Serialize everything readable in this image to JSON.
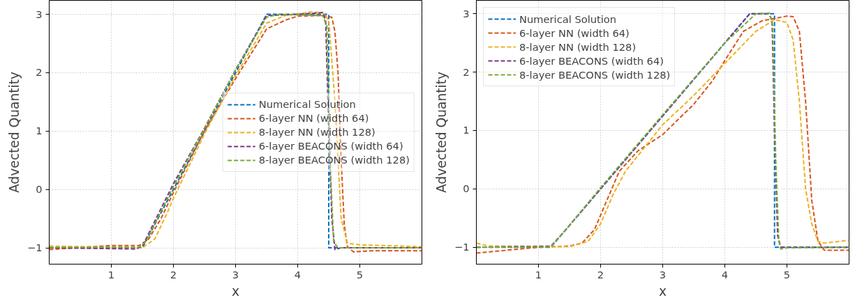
{
  "chart_data": [
    {
      "type": "line",
      "xlabel": "x",
      "ylabel": "Advected Quantity",
      "xlim": [
        0,
        6
      ],
      "ylim": [
        -1.28,
        3.24
      ],
      "xticks": [
        1,
        2,
        3,
        4,
        5
      ],
      "yticks": [
        {
          "value": -1,
          "label": "−1"
        },
        0,
        1,
        2,
        3
      ],
      "grid": true,
      "legend": "right",
      "line_style": "dashed",
      "marker": "none",
      "series": [
        {
          "name": "Numerical Solution",
          "color": "#0072bd",
          "x": [
            0,
            1.5,
            3.5,
            4.5,
            4.5,
            6
          ],
          "values": [
            -1,
            -1,
            3,
            3,
            -1,
            -1
          ]
        },
        {
          "name": "6-layer NN (width 64)",
          "color": "#d95319",
          "x": [
            0,
            1,
            1.45,
            1.6,
            1.8,
            2.0,
            2.5,
            3.0,
            3.5,
            3.8,
            4.0,
            4.4,
            4.55,
            4.6,
            4.65,
            4.7,
            4.75,
            4.8,
            4.9,
            5.2,
            6
          ],
          "values": [
            -1.03,
            -0.96,
            -0.96,
            -0.85,
            -0.5,
            -0.05,
            1.0,
            1.9,
            2.75,
            2.9,
            2.97,
            2.98,
            2.95,
            2.7,
            2.0,
            0.5,
            -0.6,
            -0.98,
            -1.07,
            -1.05,
            -1.05
          ]
        },
        {
          "name": "8-layer NN (width 128)",
          "color": "#edb120",
          "x": [
            0,
            1.5,
            1.7,
            1.9,
            2.0,
            2.5,
            3.0,
            3.5,
            3.8,
            4.2,
            4.4,
            4.5,
            4.6,
            4.65,
            4.7,
            4.8,
            5.0,
            6
          ],
          "values": [
            -0.97,
            -1.0,
            -0.85,
            -0.4,
            -0.15,
            0.95,
            1.95,
            2.85,
            2.98,
            3.04,
            3.03,
            2.9,
            1.5,
            0.5,
            -0.5,
            -0.92,
            -0.95,
            -0.98
          ]
        },
        {
          "name": "6-layer BEACONS (width 64)",
          "color": "#7e2f8e",
          "x": [
            0,
            1.4,
            1.5,
            2,
            2.5,
            3,
            3.5,
            4,
            4.4,
            4.45,
            4.5,
            4.55,
            4.6,
            4.7,
            6
          ],
          "values": [
            -1.0,
            -1.02,
            -0.97,
            0.1,
            1.05,
            2.05,
            2.98,
            3.0,
            3.03,
            2.9,
            1.0,
            -0.5,
            -1.03,
            -1.0,
            -1.0
          ]
        },
        {
          "name": "8-layer BEACONS (width 128)",
          "color": "#77ac30",
          "x": [
            0,
            1.45,
            1.55,
            2,
            2.5,
            3,
            3.5,
            3.7,
            4.4,
            4.47,
            4.52,
            4.58,
            4.65,
            6
          ],
          "values": [
            -0.99,
            -0.99,
            -0.9,
            0.05,
            1.05,
            2.05,
            2.95,
            3.0,
            2.98,
            2.8,
            0.5,
            -0.9,
            -1.0,
            -1.0
          ]
        }
      ]
    },
    {
      "type": "line",
      "xlabel": "x",
      "ylabel": "Advected Quantity",
      "xlim": [
        0,
        6
      ],
      "ylim": [
        -1.29,
        3.23
      ],
      "xticks": [
        1,
        2,
        3,
        4,
        5
      ],
      "yticks": [
        {
          "value": -1,
          "label": "−1"
        },
        0,
        1,
        2,
        3
      ],
      "grid": true,
      "legend": "top left",
      "line_style": "dashed",
      "marker": "none",
      "series": [
        {
          "name": "Numerical Solution",
          "color": "#0072bd",
          "x": [
            0,
            1.2,
            4.4,
            4.8,
            4.8,
            6
          ],
          "values": [
            -1,
            -1,
            3,
            3,
            -1,
            -1
          ]
        },
        {
          "name": "6-layer NN (width 64)",
          "color": "#d95319",
          "x": [
            0,
            1,
            1.5,
            1.7,
            1.9,
            2.1,
            2.3,
            2.6,
            3.0,
            3.5,
            3.8,
            4.0,
            4.3,
            4.6,
            5.0,
            5.1,
            5.2,
            5.3,
            5.4,
            5.5,
            5.6,
            6
          ],
          "values": [
            -1.1,
            -1.0,
            -0.98,
            -0.93,
            -0.7,
            -0.2,
            0.3,
            0.65,
            0.93,
            1.45,
            1.85,
            2.2,
            2.7,
            2.88,
            2.96,
            2.95,
            2.7,
            1.5,
            -0.2,
            -0.9,
            -1.05,
            -1.05
          ]
        },
        {
          "name": "8-layer NN (width 128)",
          "color": "#edb120",
          "x": [
            0,
            0.2,
            1.5,
            1.8,
            2.0,
            2.2,
            2.4,
            2.7,
            3.0,
            3.5,
            4.0,
            4.5,
            4.8,
            5.0,
            5.1,
            5.2,
            5.3,
            5.4,
            5.5,
            5.6,
            6
          ],
          "values": [
            -0.93,
            -0.98,
            -0.99,
            -0.9,
            -0.6,
            -0.1,
            0.3,
            0.7,
            1.1,
            1.6,
            2.15,
            2.7,
            2.9,
            2.85,
            2.55,
            1.5,
            0.0,
            -0.6,
            -0.9,
            -0.93,
            -0.88
          ]
        },
        {
          "name": "6-layer BEACONS (width 64)",
          "color": "#7e2f8e",
          "x": [
            0,
            1.2,
            1.4,
            2,
            3,
            4,
            4.4,
            4.7,
            4.76,
            4.8,
            4.85,
            4.9,
            6
          ],
          "values": [
            -1.0,
            -0.98,
            -0.75,
            0.0,
            1.25,
            2.5,
            3.0,
            3.0,
            2.9,
            1.0,
            -0.8,
            -1.0,
            -1.0
          ]
        },
        {
          "name": "8-layer BEACONS (width 128)",
          "color": "#77ac30",
          "x": [
            0,
            1.2,
            1.4,
            2,
            3,
            4,
            4.5,
            4.72,
            4.77,
            4.82,
            4.87,
            4.9,
            5.0,
            6
          ],
          "values": [
            -1.0,
            -0.99,
            -0.75,
            0.02,
            1.27,
            2.5,
            3.0,
            3.01,
            2.8,
            0.5,
            -0.9,
            -1.03,
            -1.01,
            -1.0
          ]
        }
      ]
    }
  ]
}
